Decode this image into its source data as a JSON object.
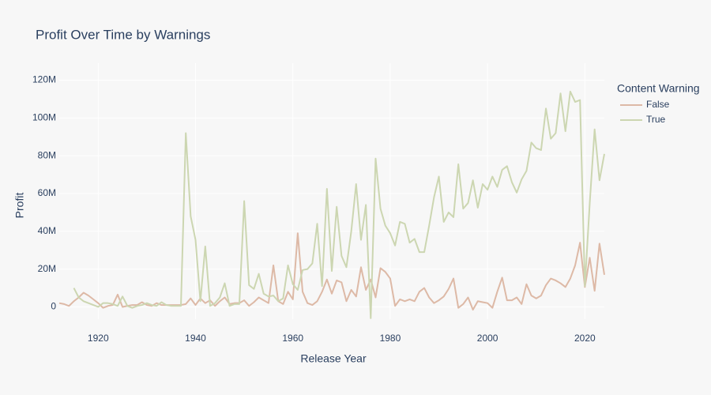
{
  "chart_data": {
    "type": "line",
    "title": "Profit Over Time by Warnings",
    "x_label": "Release Year",
    "y_label": "Profit",
    "legend_title": "Content Warning",
    "legend_position": "right",
    "grid": true,
    "x": [
      1912,
      1913,
      1914,
      1915,
      1916,
      1917,
      1918,
      1919,
      1920,
      1921,
      1922,
      1923,
      1924,
      1925,
      1926,
      1927,
      1928,
      1929,
      1930,
      1931,
      1932,
      1933,
      1934,
      1935,
      1936,
      1937,
      1938,
      1939,
      1940,
      1941,
      1942,
      1943,
      1944,
      1945,
      1946,
      1947,
      1948,
      1949,
      1950,
      1951,
      1952,
      1953,
      1954,
      1955,
      1956,
      1957,
      1958,
      1959,
      1960,
      1961,
      1962,
      1963,
      1964,
      1965,
      1966,
      1967,
      1968,
      1969,
      1970,
      1971,
      1972,
      1973,
      1974,
      1975,
      1976,
      1977,
      1978,
      1979,
      1980,
      1981,
      1982,
      1983,
      1984,
      1985,
      1986,
      1987,
      1988,
      1989,
      1990,
      1991,
      1992,
      1993,
      1994,
      1995,
      1996,
      1997,
      1998,
      1999,
      2000,
      2001,
      2002,
      2003,
      2004,
      2005,
      2006,
      2007,
      2008,
      2009,
      2010,
      2011,
      2012,
      2013,
      2014,
      2015,
      2016,
      2017,
      2018,
      2019,
      2020,
      2021,
      2022,
      2023,
      2024
    ],
    "xlim": [
      1912,
      2024
    ],
    "xticks": [
      1920,
      1940,
      1960,
      1980,
      2000,
      2020
    ],
    "ylim": [
      -6500000,
      129000000
    ],
    "yticks": [
      0,
      {
        "value": 20000000,
        "label": "20M"
      },
      {
        "value": 40000000,
        "label": "40M"
      },
      {
        "value": 60000000,
        "label": "60M"
      },
      {
        "value": 80000000,
        "label": "80M"
      },
      {
        "value": 100000000,
        "label": "100M"
      },
      {
        "value": 120000000,
        "label": "120M"
      }
    ],
    "series": [
      {
        "name": "False",
        "color": "#ddb9a6",
        "values": [
          2000000,
          1500000,
          500000,
          3000000,
          5000000,
          7500000,
          6000000,
          4000000,
          2000000,
          -500000,
          500000,
          1000000,
          6500000,
          0,
          500000,
          1000000,
          1000000,
          2500000,
          1000000,
          500000,
          2000000,
          1000000,
          1000000,
          1000000,
          1000000,
          1000000,
          1500000,
          4500000,
          1000000,
          4500000,
          2000000,
          3500000,
          500000,
          3000000,
          5000000,
          1500000,
          2000000,
          2000000,
          3500000,
          500000,
          2500000,
          5000000,
          3500000,
          2000000,
          22000000,
          3000000,
          1500000,
          8000000,
          4000000,
          39000000,
          8000000,
          2000000,
          1000000,
          3000000,
          8000000,
          14500000,
          7000000,
          14000000,
          13000000,
          3000000,
          9000000,
          5500000,
          21000000,
          9000000,
          14500000,
          5000000,
          20500000,
          18500000,
          15000000,
          500000,
          4000000,
          3000000,
          4000000,
          3000000,
          8000000,
          10000000,
          5000000,
          2000000,
          3500000,
          5500000,
          9500000,
          15000000,
          -500000,
          1500000,
          5000000,
          -1500000,
          3000000,
          2500000,
          2000000,
          -500000,
          8000000,
          15500000,
          3500000,
          3500000,
          5000000,
          1500000,
          12000000,
          6000000,
          4500000,
          6000000,
          11500000,
          15000000,
          14000000,
          12500000,
          10500000,
          15000000,
          22000000,
          34000000,
          10500000,
          26000000,
          8500000,
          33500000,
          17000000
        ]
      },
      {
        "name": "True",
        "color": "#ccd6b1",
        "values": [
          null,
          null,
          null,
          10000000,
          5000000,
          3000000,
          2000000,
          1000000,
          0,
          2000000,
          2000000,
          1500000,
          500000,
          5500000,
          500000,
          -500000,
          500000,
          1000000,
          2000000,
          1000000,
          500000,
          2500000,
          1000000,
          500000,
          500000,
          500000,
          92000000,
          48000000,
          35500000,
          3000000,
          32000000,
          500000,
          2000000,
          5000000,
          12500000,
          500000,
          1500000,
          1500000,
          56000000,
          11500000,
          9500000,
          17500000,
          7000000,
          5500000,
          6000000,
          3000000,
          4500000,
          22000000,
          12000000,
          9000000,
          19500000,
          20000000,
          23000000,
          44000000,
          11000000,
          62500000,
          19000000,
          53000000,
          27000000,
          21000000,
          40000000,
          65000000,
          35500000,
          54000000,
          -6000000,
          78500000,
          52000000,
          43000000,
          39000000,
          32500000,
          45000000,
          44000000,
          34000000,
          36000000,
          29000000,
          29000000,
          43000000,
          58000000,
          69000000,
          45000000,
          50000000,
          47500000,
          75500000,
          52000000,
          55000000,
          67000000,
          52500000,
          65000000,
          62000000,
          69000000,
          63500000,
          72500000,
          74500000,
          66000000,
          60500000,
          67500000,
          72000000,
          87000000,
          84000000,
          83000000,
          105000000,
          89000000,
          92000000,
          113000000,
          93000000,
          114000000,
          108500000,
          109500000,
          11000000,
          55000000,
          94000000,
          67000000,
          81000000
        ]
      }
    ]
  }
}
